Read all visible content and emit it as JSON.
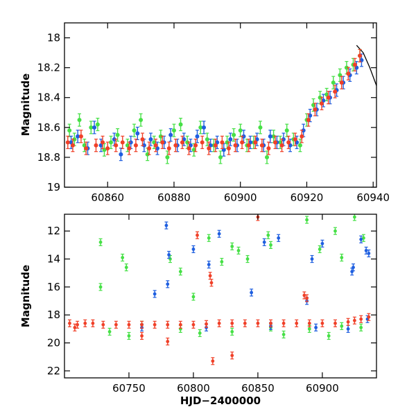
{
  "chart_data": [
    {
      "type": "scatter",
      "panel": "top",
      "xlabel": "",
      "ylabel": "Magnitude",
      "xlim": [
        60847,
        60941
      ],
      "ylim": [
        19.0,
        17.9
      ],
      "y_inverted": true,
      "xticks": [
        60860,
        60880,
        60900,
        60920,
        60940
      ],
      "yticks": [
        18,
        18.2,
        18.4,
        18.6,
        18.8,
        19
      ],
      "series": [
        {
          "color": "#46e046",
          "points": [
            [
              60848.5,
              18.62
            ],
            [
              60850,
              18.68
            ],
            [
              60851.5,
              18.55
            ],
            [
              60853,
              18.72
            ],
            [
              60855,
              18.6
            ],
            [
              60857,
              18.58
            ],
            [
              60859,
              18.75
            ],
            [
              60861,
              18.7
            ],
            [
              60863,
              18.65
            ],
            [
              60866,
              18.72
            ],
            [
              60868,
              18.62
            ],
            [
              60870,
              18.55
            ],
            [
              60872,
              18.78
            ],
            [
              60874,
              18.7
            ],
            [
              60876,
              18.66
            ],
            [
              60878,
              18.8
            ],
            [
              60880,
              18.62
            ],
            [
              60882,
              18.58
            ],
            [
              60884,
              18.7
            ],
            [
              60886,
              18.75
            ],
            [
              60888,
              18.6
            ],
            [
              60890,
              18.68
            ],
            [
              60892,
              18.72
            ],
            [
              60894,
              18.8
            ],
            [
              60896,
              18.7
            ],
            [
              60898,
              18.65
            ],
            [
              60900,
              18.62
            ],
            [
              60902,
              18.72
            ],
            [
              60904,
              18.7
            ],
            [
              60906,
              18.6
            ],
            [
              60908,
              18.8
            ],
            [
              60910,
              18.66
            ],
            [
              60912,
              18.7
            ],
            [
              60914,
              18.62
            ],
            [
              60916,
              18.68
            ],
            [
              60918,
              18.72
            ],
            [
              60920,
              18.55
            ],
            [
              60922,
              18.45
            ],
            [
              60924,
              18.4
            ],
            [
              60926,
              18.38
            ],
            [
              60928,
              18.3
            ],
            [
              60930,
              18.25
            ],
            [
              60932,
              18.2
            ],
            [
              60934,
              18.18
            ],
            [
              60936,
              18.12
            ]
          ]
        },
        {
          "color": "#1f5fe0",
          "points": [
            [
              60849,
              18.7
            ],
            [
              60851,
              18.66
            ],
            [
              60854,
              18.74
            ],
            [
              60856,
              18.6
            ],
            [
              60858,
              18.72
            ],
            [
              60862,
              18.68
            ],
            [
              60864,
              18.78
            ],
            [
              60867,
              18.7
            ],
            [
              60869,
              18.64
            ],
            [
              60871,
              18.72
            ],
            [
              60873,
              18.68
            ],
            [
              60875,
              18.74
            ],
            [
              60877,
              18.7
            ],
            [
              60879,
              18.65
            ],
            [
              60881,
              18.72
            ],
            [
              60883,
              18.68
            ],
            [
              60885,
              18.72
            ],
            [
              60887,
              18.66
            ],
            [
              60889,
              18.6
            ],
            [
              60891,
              18.72
            ],
            [
              60893,
              18.7
            ],
            [
              60895,
              18.75
            ],
            [
              60897,
              18.68
            ],
            [
              60899,
              18.72
            ],
            [
              60901,
              18.66
            ],
            [
              60903,
              18.7
            ],
            [
              60905,
              18.68
            ],
            [
              60907,
              18.72
            ],
            [
              60909,
              18.66
            ],
            [
              60911,
              18.7
            ],
            [
              60913,
              18.68
            ],
            [
              60915,
              18.72
            ],
            [
              60917,
              18.7
            ],
            [
              60919,
              18.62
            ],
            [
              60921,
              18.52
            ],
            [
              60923,
              18.48
            ],
            [
              60925,
              18.42
            ],
            [
              60927,
              18.4
            ],
            [
              60929,
              18.35
            ],
            [
              60931,
              18.3
            ],
            [
              60933,
              18.25
            ],
            [
              60935,
              18.2
            ],
            [
              60936.5,
              18.15
            ]
          ]
        },
        {
          "color": "#f04028",
          "points": [
            [
              60848,
              18.7
            ],
            [
              60849.5,
              18.72
            ],
            [
              60852,
              18.66
            ],
            [
              60853.5,
              18.74
            ],
            [
              60856.5,
              18.72
            ],
            [
              60858.5,
              18.7
            ],
            [
              60860,
              18.74
            ],
            [
              60862.5,
              18.72
            ],
            [
              60864.5,
              18.7
            ],
            [
              60866.5,
              18.74
            ],
            [
              60868.5,
              18.72
            ],
            [
              60870.5,
              18.68
            ],
            [
              60872.5,
              18.74
            ],
            [
              60874.5,
              18.72
            ],
            [
              60876.5,
              18.7
            ],
            [
              60878.5,
              18.74
            ],
            [
              60880.5,
              18.72
            ],
            [
              60882.5,
              18.7
            ],
            [
              60884.5,
              18.74
            ],
            [
              60886.5,
              18.72
            ],
            [
              60888.5,
              18.7
            ],
            [
              60890.5,
              18.74
            ],
            [
              60892.5,
              18.72
            ],
            [
              60894.5,
              18.7
            ],
            [
              60896.5,
              18.74
            ],
            [
              60898.5,
              18.72
            ],
            [
              60900.5,
              18.7
            ],
            [
              60902.5,
              18.72
            ],
            [
              60904.5,
              18.7
            ],
            [
              60906.5,
              18.72
            ],
            [
              60908.5,
              18.74
            ],
            [
              60910.5,
              18.7
            ],
            [
              60912.5,
              18.72
            ],
            [
              60914.5,
              18.7
            ],
            [
              60916.5,
              18.68
            ],
            [
              60918.5,
              18.66
            ],
            [
              60920.5,
              18.55
            ],
            [
              60922.5,
              18.48
            ],
            [
              60924.5,
              18.44
            ],
            [
              60926.5,
              18.4
            ],
            [
              60928.5,
              18.36
            ],
            [
              60930.5,
              18.3
            ],
            [
              60932.5,
              18.24
            ],
            [
              60934.5,
              18.18
            ],
            [
              60936,
              18.12
            ]
          ]
        }
      ],
      "model_curve": [
        [
          60935,
          18.05
        ],
        [
          60937,
          18.1
        ],
        [
          60939,
          18.2
        ],
        [
          60941,
          18.32
        ]
      ]
    },
    {
      "type": "scatter",
      "panel": "bottom",
      "xlabel": "HJD−2400000",
      "ylabel": "Magnitude",
      "xlim": [
        60700,
        60942
      ],
      "ylim": [
        22.5,
        10.8
      ],
      "y_inverted": true,
      "xticks": [
        60750,
        60800,
        60850,
        60900
      ],
      "yticks": [
        12,
        14,
        16,
        18,
        20,
        22
      ],
      "series": [
        {
          "color": "#46e046",
          "points": [
            [
              60728,
              12.8
            ],
            [
              60728,
              16.0
            ],
            [
              60745,
              13.9
            ],
            [
              60748,
              14.6
            ],
            [
              60760,
              18.7
            ],
            [
              60782,
              14.0
            ],
            [
              60790,
              14.9
            ],
            [
              60800,
              16.7
            ],
            [
              60812,
              12.5
            ],
            [
              60822,
              14.2
            ],
            [
              60830,
              13.1
            ],
            [
              60835,
              13.4
            ],
            [
              60842,
              14.0
            ],
            [
              60858,
              12.3
            ],
            [
              60860,
              13.0
            ],
            [
              60888,
              11.2
            ],
            [
              60898,
              13.3
            ],
            [
              60910,
              12.0
            ],
            [
              60915,
              13.9
            ],
            [
              60925,
              11.0
            ],
            [
              60932,
              12.5
            ],
            [
              60735,
              19.2
            ],
            [
              60790,
              19.0
            ],
            [
              60830,
              19.2
            ],
            [
              60860,
              18.9
            ],
            [
              60890,
              19.0
            ],
            [
              60915,
              18.8
            ],
            [
              60750,
              19.5
            ],
            [
              60805,
              19.3
            ],
            [
              60870,
              19.4
            ],
            [
              60905,
              19.5
            ],
            [
              60930,
              18.9
            ]
          ]
        },
        {
          "color": "#1f5fe0",
          "points": [
            [
              60770,
              16.5
            ],
            [
              60779,
              11.6
            ],
            [
              60780,
              15.8
            ],
            [
              60781,
              13.7
            ],
            [
              60800,
              13.3
            ],
            [
              60812,
              14.4
            ],
            [
              60820,
              12.2
            ],
            [
              60845,
              16.4
            ],
            [
              60855,
              12.8
            ],
            [
              60866,
              12.5
            ],
            [
              60888,
              17.0
            ],
            [
              60892,
              14.0
            ],
            [
              60900,
              12.9
            ],
            [
              60923,
              14.9
            ],
            [
              60924,
              14.6
            ],
            [
              60930,
              12.6
            ],
            [
              60934,
              13.4
            ],
            [
              60936,
              13.6
            ],
            [
              60760,
              18.9
            ],
            [
              60810,
              18.9
            ],
            [
              60860,
              18.8
            ],
            [
              60895,
              18.9
            ],
            [
              60920,
              19.0
            ],
            [
              60935,
              18.3
            ]
          ]
        },
        {
          "color": "#f04028",
          "points": [
            [
              60704,
              18.6
            ],
            [
              60710,
              18.7
            ],
            [
              60716,
              18.6
            ],
            [
              60722,
              18.6
            ],
            [
              60730,
              18.7
            ],
            [
              60740,
              18.7
            ],
            [
              60750,
              18.7
            ],
            [
              60760,
              18.7
            ],
            [
              60770,
              18.7
            ],
            [
              60780,
              18.7
            ],
            [
              60790,
              18.7
            ],
            [
              60800,
              18.7
            ],
            [
              60810,
              18.65
            ],
            [
              60820,
              18.6
            ],
            [
              60830,
              18.6
            ],
            [
              60840,
              18.6
            ],
            [
              60850,
              18.6
            ],
            [
              60860,
              18.6
            ],
            [
              60870,
              18.6
            ],
            [
              60880,
              18.6
            ],
            [
              60890,
              18.6
            ],
            [
              60900,
              18.6
            ],
            [
              60910,
              18.6
            ],
            [
              60920,
              18.5
            ],
            [
              60925,
              18.4
            ],
            [
              60930,
              18.3
            ],
            [
              60936,
              18.15
            ],
            [
              60803,
              12.3
            ],
            [
              60813,
              15.2
            ],
            [
              60814,
              15.7
            ],
            [
              60815,
              21.3
            ],
            [
              60830,
              20.9
            ],
            [
              60850,
              11.0
            ],
            [
              60886,
              16.6
            ],
            [
              60888,
              16.8
            ],
            [
              60708,
              18.9
            ],
            [
              60780,
              19.9
            ],
            [
              60760,
              19.5
            ]
          ]
        }
      ]
    }
  ]
}
